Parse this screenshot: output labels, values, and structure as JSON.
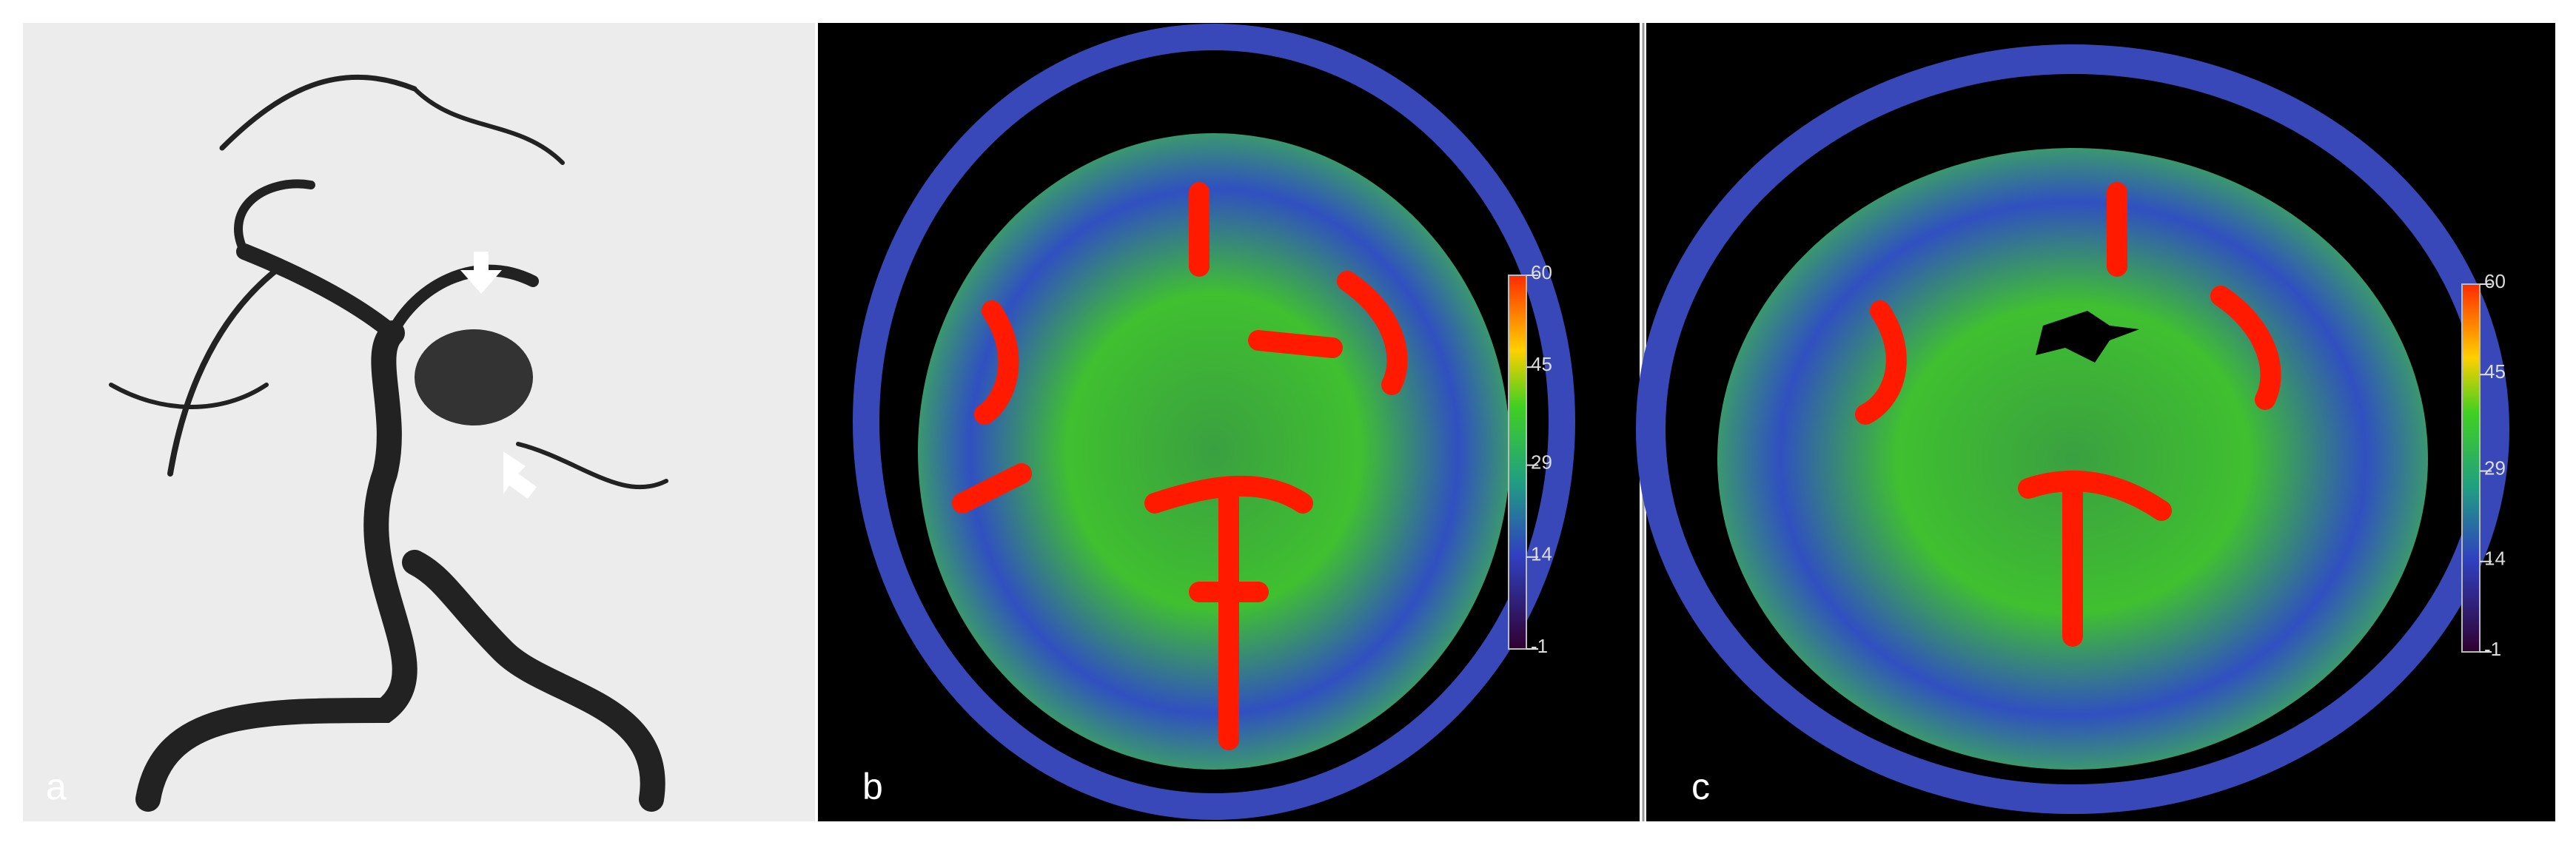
{
  "panels": [
    {
      "label": "a"
    },
    {
      "label": "b",
      "colorbar": {
        "ticks": [
          60,
          45,
          29,
          14,
          -1
        ]
      }
    },
    {
      "label": "c",
      "colorbar": {
        "ticks": [
          60,
          45,
          29,
          14,
          -1
        ]
      }
    }
  ]
}
